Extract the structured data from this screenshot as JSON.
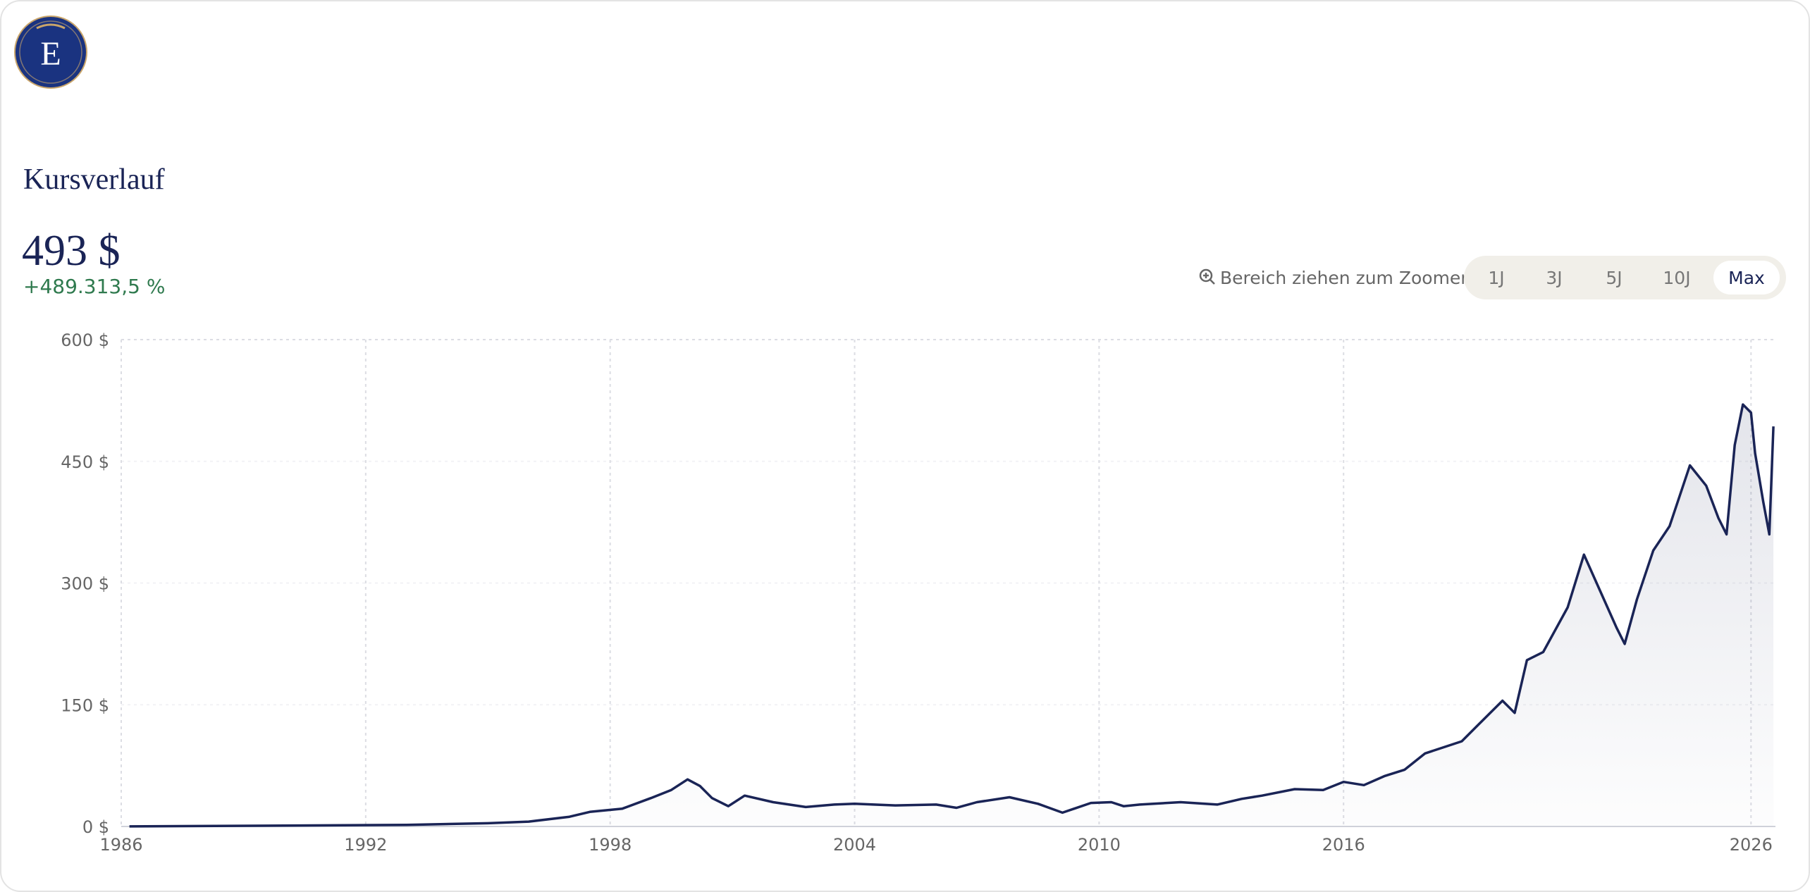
{
  "logo": "E",
  "chart_data": {
    "type": "line",
    "title": "Kursverlauf",
    "price": "493 $",
    "change": "+489.313,5 %",
    "zoom_hint": "Bereich ziehen zum Zoomen",
    "ranges": [
      "1J",
      "3J",
      "5J",
      "10J",
      "Max"
    ],
    "active_range": 4,
    "color": "#1a2456",
    "grid": true,
    "x": [
      1986.2,
      1990,
      1993,
      1995,
      1996,
      1997,
      1997.5,
      1998.3,
      1999,
      1999.5,
      1999.9,
      2000.2,
      2000.5,
      2000.9,
      2001.3,
      2002,
      2002.8,
      2003.5,
      2004,
      2005,
      2006,
      2006.5,
      2007,
      2007.8,
      2008.5,
      2009.1,
      2009.8,
      2010.3,
      2010.6,
      2011,
      2012,
      2012.9,
      2013.5,
      2014,
      2014.8,
      2015.5,
      2016,
      2016.5,
      2017,
      2017.5,
      2018,
      2018.9,
      2019.3,
      2019.9,
      2020.2,
      2020.5,
      2020.9,
      2021.5,
      2021.9,
      2022.3,
      2022.7,
      2022.9,
      2023.2,
      2023.6,
      2024,
      2024.5,
      2024.9,
      2025.2,
      2025.4,
      2025.6,
      2025.8,
      2026,
      2026.1,
      2026.3,
      2026.45,
      2026.55
    ],
    "values": [
      0.1,
      1,
      2,
      4,
      6,
      12,
      18,
      22,
      35,
      45,
      58,
      50,
      35,
      25,
      38,
      30,
      24,
      27,
      28,
      26,
      27,
      23,
      30,
      36,
      28,
      17,
      29,
      30,
      25,
      27,
      30,
      27,
      34,
      38,
      46,
      45,
      55,
      51,
      62,
      70,
      90,
      105,
      125,
      155,
      140,
      205,
      215,
      270,
      335,
      290,
      245,
      225,
      280,
      340,
      370,
      445,
      420,
      380,
      360,
      470,
      520,
      510,
      460,
      400,
      360,
      493
    ],
    "xlim": [
      1986,
      2026.6
    ],
    "xticks": [
      1986,
      1992,
      1998,
      2004,
      2010,
      2016,
      2026
    ],
    "ylim": [
      0,
      600
    ],
    "yticks": [
      {
        "value": 0,
        "label": "0 $"
      },
      {
        "value": 150,
        "label": "150 $"
      },
      {
        "value": 300,
        "label": "300 $"
      },
      {
        "value": 450,
        "label": "450 $"
      },
      {
        "value": 600,
        "label": "600 $"
      }
    ]
  }
}
